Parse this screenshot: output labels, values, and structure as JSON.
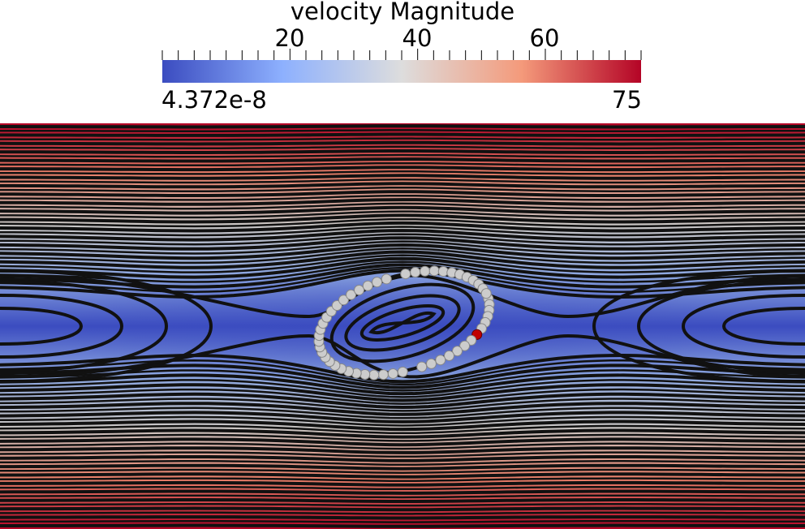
{
  "colorbar": {
    "title": "velocity Magnitude",
    "min_label": "4.372e-8",
    "max_label": "75",
    "tick_labels": [
      "20",
      "40",
      "60"
    ],
    "tick_values": [
      20,
      40,
      60
    ],
    "range": [
      0,
      75
    ],
    "colormap": [
      "#3b4cc0",
      "#8db0fe",
      "#dddddd",
      "#f49a7b",
      "#b40426"
    ]
  },
  "field": {
    "background_gradient": [
      "#b40426",
      "#e8806a",
      "#c9c6c4",
      "#8ca6e0",
      "#3b4cc0"
    ],
    "streamline_color": "#111111",
    "particle_color": "#cccccc",
    "highlight_particle_color": "#c00000"
  }
}
